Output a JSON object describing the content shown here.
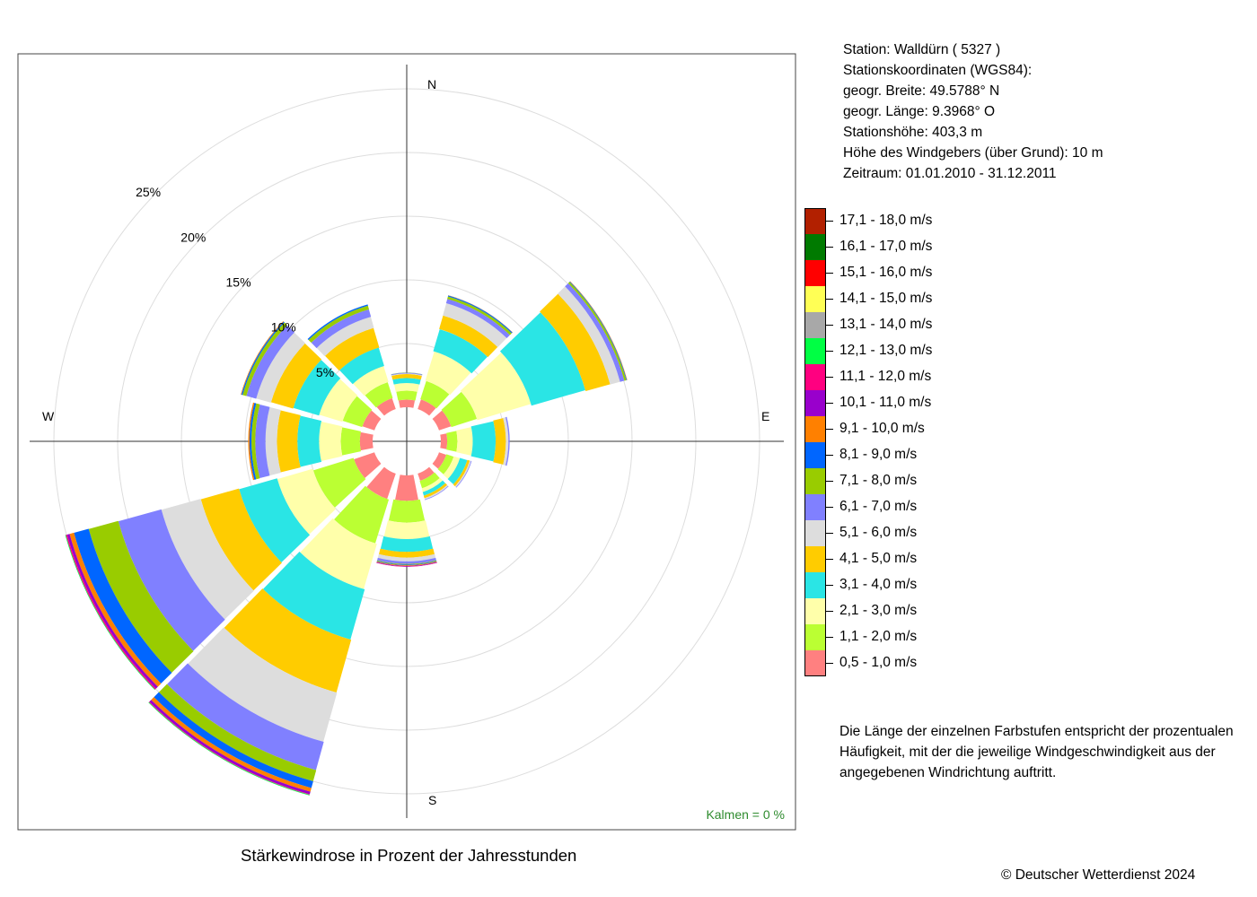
{
  "caption": "Stärkewindrose in Prozent der Jahresstunden",
  "copyright": "© Deutscher Wetterdienst  2024",
  "station_info": [
    "Station:  Walldürn  ( 5327 )",
    "Stationskoordinaten (WGS84):",
    "geogr. Breite: 49.5788° N",
    "geogr. Länge:   9.3968° O",
    "Stationshöhe: 403,3 m",
    "Höhe des Windgebers (über Grund): 10 m",
    "Zeitraum: 01.01.2010 - 31.12.2011"
  ],
  "note": "Die Länge der einzelnen Farbstufen entspricht der prozentualen Häufigkeit, mit der die jeweilige Windgeschwindigkeit aus der angegebenen Windrichtung auftritt.",
  "calm_label": "Kalmen  =  0 %",
  "compass": {
    "n": "N",
    "e": "E",
    "s": "S",
    "w": "W"
  },
  "ring_labels": [
    "5%",
    "10%",
    "15%",
    "20%",
    "25%"
  ],
  "legend": [
    {
      "label": "17,1 - 18,0 m/s",
      "color": "#B22000"
    },
    {
      "label": "16,1 - 17,0 m/s",
      "color": "#007A00"
    },
    {
      "label": "15,1 - 16,0 m/s",
      "color": "#FF0000"
    },
    {
      "label": "14,1 - 15,0 m/s",
      "color": "#FFFF55"
    },
    {
      "label": "13,1 - 14,0 m/s",
      "color": "#A8A8A8"
    },
    {
      "label": "12,1 - 13,0 m/s",
      "color": "#00FF44"
    },
    {
      "label": "11,1 - 12,0 m/s",
      "color": "#FF0080"
    },
    {
      "label": "10,1 - 11,0 m/s",
      "color": "#9900CC"
    },
    {
      "label": "9,1 - 10,0 m/s",
      "color": "#FF8000"
    },
    {
      "label": "8,1 - 9,0 m/s",
      "color": "#0066FF"
    },
    {
      "label": "7,1 - 8,0 m/s",
      "color": "#99CC00"
    },
    {
      "label": "6,1 - 7,0 m/s",
      "color": "#8080FF"
    },
    {
      "label": "5,1 - 6,0 m/s",
      "color": "#DDDDDD"
    },
    {
      "label": "4,1 - 5,0 m/s",
      "color": "#FFCC00"
    },
    {
      "label": "3,1 - 4,0 m/s",
      "color": "#2AE5E5"
    },
    {
      "label": "2,1 - 3,0 m/s",
      "color": "#FFFFAA"
    },
    {
      "label": "1,1 - 2,0 m/s",
      "color": "#BBFF33"
    },
    {
      "label": "0,5 - 1,0 m/s",
      "color": "#FF8080"
    }
  ],
  "chart_data": {
    "type": "wind-rose",
    "unit": "%",
    "rings": [
      5,
      10,
      15,
      20,
      25
    ],
    "speed_classes": [
      "0,5 - 1,0 m/s",
      "1,1 - 2,0 m/s",
      "2,1 - 3,0 m/s",
      "3,1 - 4,0 m/s",
      "4,1 - 5,0 m/s",
      "5,1 - 6,0 m/s",
      "6,1 - 7,0 m/s",
      "7,1 - 8,0 m/s",
      "8,1 - 9,0 m/s",
      "9,1 - 10,0 m/s",
      "10,1 - 11,0 m/s",
      "11,1 - 12,0 m/s",
      "12,1 - 13,0 m/s",
      "13,1 - 14,0 m/s",
      "14,1 - 15,0 m/s",
      "15,1 - 16,0 m/s",
      "16,1 - 17,0 m/s",
      "17,1 - 18,0 m/s"
    ],
    "direction_degrees": [
      0,
      30,
      60,
      90,
      120,
      150,
      180,
      210,
      240,
      270,
      300,
      330
    ],
    "sector_width_degrees": 30,
    "values": [
      [
        0.6,
        0.7,
        0.6,
        0.4,
        0.3,
        0.05,
        0.05,
        0.02,
        0.01
      ],
      [
        0.8,
        1.5,
        2.4,
        1.8,
        1.1,
        1.0,
        0.35,
        0.2,
        0.08,
        0.02
      ],
      [
        1.0,
        2.1,
        4.4,
        4.4,
        2.0,
        0.8,
        0.35,
        0.15,
        0.05,
        0.03
      ],
      [
        0.5,
        0.8,
        1.2,
        1.8,
        0.8,
        0.2,
        0.1
      ],
      [
        0.6,
        0.6,
        0.5,
        0.6,
        0.2,
        0.1,
        0.05
      ],
      [
        0.6,
        0.6,
        0.3,
        0.3,
        0.2,
        0.1,
        0.05
      ],
      [
        2.0,
        1.7,
        1.3,
        1.0,
        0.45,
        0.3,
        0.2,
        0.05,
        0.05,
        0.05,
        0.05,
        0.02
      ],
      [
        2.1,
        3.6,
        3.7,
        4.1,
        4.3,
        4.0,
        2.3,
        0.9,
        0.55,
        0.3,
        0.2,
        0.05,
        0.05
      ],
      [
        1.7,
        3.3,
        2.9,
        3.1,
        3.1,
        3.2,
        3.5,
        2.4,
        1.2,
        0.35,
        0.2,
        0.1,
        0.05
      ],
      [
        1.0,
        1.5,
        1.7,
        1.7,
        1.6,
        0.9,
        0.8,
        0.3,
        0.15,
        0.1
      ],
      [
        1.0,
        1.6,
        1.9,
        2.1,
        1.8,
        1.2,
        0.8,
        0.3,
        0.1,
        0.05
      ],
      [
        0.9,
        1.3,
        1.3,
        1.5,
        1.6,
        0.9,
        0.6,
        0.3,
        0.1
      ]
    ],
    "calm_percent": 0
  }
}
